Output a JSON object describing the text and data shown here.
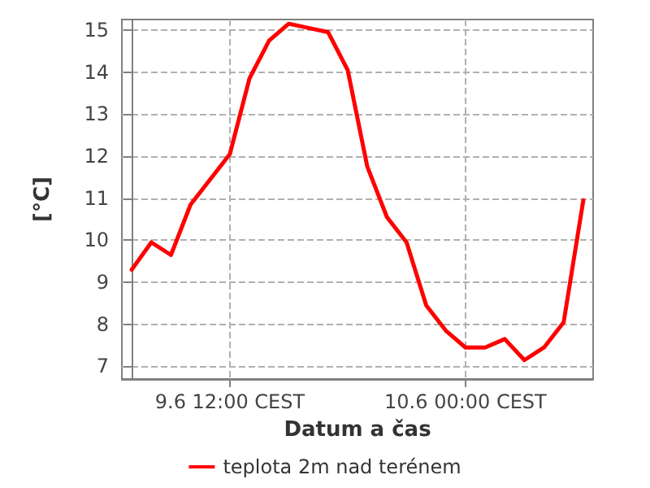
{
  "chart_data": {
    "type": "line",
    "xlabel": "Datum a čas",
    "ylabel": "[°C]",
    "categories": [
      null,
      null,
      null,
      null,
      null,
      "9.6 12:00 CEST",
      null,
      null,
      null,
      null,
      null,
      null,
      null,
      null,
      null,
      null,
      null,
      "10.6 00:00 CEST",
      null,
      null,
      null,
      null,
      null,
      null
    ],
    "series": [
      {
        "name": "teplota 2m nad terénem",
        "color": "#ff0000",
        "values": [
          9.3,
          9.95,
          9.65,
          10.85,
          11.45,
          12.05,
          13.85,
          14.75,
          15.15,
          15.05,
          14.95,
          14.05,
          11.75,
          10.55,
          9.95,
          8.45,
          7.85,
          7.45,
          7.45,
          7.65,
          7.15,
          7.45,
          8.05,
          10.95
        ]
      }
    ],
    "ylim": [
      6.7,
      15.25
    ],
    "yticks": [
      7,
      8,
      9,
      10,
      11,
      12,
      13,
      14,
      15
    ],
    "grid": true,
    "legend": "bottom",
    "marker": "none",
    "line_style": "solid"
  }
}
